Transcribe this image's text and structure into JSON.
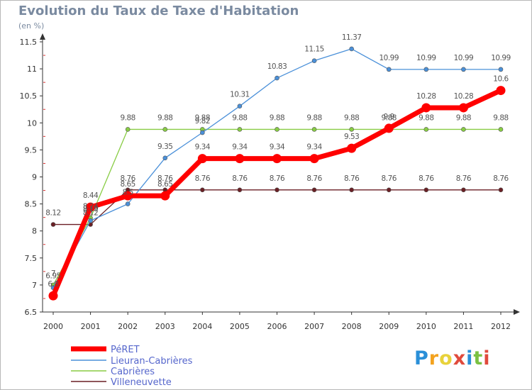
{
  "header": {
    "title": "Evolution du Taux de Taxe d'Habitation",
    "unit": "(en %)"
  },
  "logo": {
    "letters": [
      "P",
      "r",
      "o",
      "x",
      "i",
      "t",
      "i"
    ],
    "colors": [
      "#2a8fd8",
      "#f3a21e",
      "#e8d23a",
      "#e04a3c",
      "#2a8fd8",
      "#7ac143",
      "#e04a3c"
    ]
  },
  "chart_data": {
    "type": "line",
    "title": "Evolution du Taux de Taxe d'Habitation",
    "ylabel": "(en %)",
    "xlabel": "",
    "x": [
      "2000",
      "2001",
      "2002",
      "2003",
      "2004",
      "2005",
      "2006",
      "2007",
      "2008",
      "2009",
      "2010",
      "2011",
      "2012"
    ],
    "ylim": [
      6.5,
      11.5
    ],
    "yticks": [
      "6.5",
      "7",
      "7.5",
      "8",
      "8.5",
      "9",
      "9.5",
      "10",
      "10.5",
      "11",
      "11.5"
    ],
    "grid": false,
    "legend_position": "bottom-left",
    "series": [
      {
        "name": "PéRET",
        "color": "#ff0000",
        "values": [
          6.8,
          8.44,
          8.65,
          8.65,
          9.34,
          9.34,
          9.34,
          9.34,
          9.53,
          9.9,
          10.28,
          10.28,
          10.6
        ],
        "labels": [
          "6.8",
          "8.44",
          "8.65",
          "8.65",
          "9.34",
          "9.34",
          "9.34",
          "9.34",
          "9.53",
          "9.9",
          "10.28",
          "10.28",
          "10.6"
        ]
      },
      {
        "name": "Lieuran-Cabrières",
        "color": "#4a90d9",
        "values": [
          6.95,
          8.19,
          8.5,
          9.35,
          9.82,
          10.31,
          10.83,
          11.15,
          11.37,
          10.99,
          10.99,
          10.99,
          10.99
        ],
        "labels": [
          "6.95",
          "8.19",
          "8.5",
          "9.35",
          "9.82",
          "10.31",
          "10.83",
          "11.15",
          "11.37",
          "10.99",
          "10.99",
          "10.99",
          "10.99"
        ]
      },
      {
        "name": "Cabrières",
        "color": "#88cc44",
        "values": [
          7.0,
          8.24,
          9.88,
          9.88,
          9.88,
          9.88,
          9.88,
          9.88,
          9.88,
          9.88,
          9.88,
          9.88,
          9.88
        ],
        "labels": [
          "7",
          "8.24",
          "9.88",
          "9.88",
          "9.88",
          "9.88",
          "9.88",
          "9.88",
          "9.88",
          "9.88",
          "9.88",
          "9.88",
          "9.88"
        ]
      },
      {
        "name": "Villeneuvette",
        "color": "#6a1f24",
        "values": [
          8.12,
          8.12,
          8.76,
          8.76,
          8.76,
          8.76,
          8.76,
          8.76,
          8.76,
          8.76,
          8.76,
          8.76,
          8.76
        ],
        "labels": [
          "8.12",
          "8.12",
          "8.76",
          "8.76",
          "8.76",
          "8.76",
          "8.76",
          "8.76",
          "8.76",
          "8.76",
          "8.76",
          "8.76",
          "8.76"
        ]
      }
    ]
  }
}
